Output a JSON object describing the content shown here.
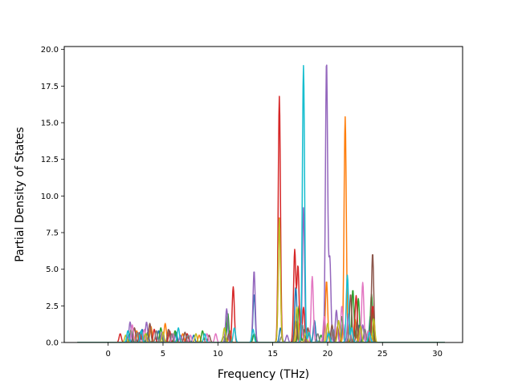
{
  "chart_data": {
    "type": "line",
    "title": "",
    "xlabel": "Frequency (THz)",
    "ylabel": "Partial Density of States",
    "xlim": [
      -4.0,
      32.3
    ],
    "ylim": [
      0.0,
      20.2
    ],
    "xticks": [
      0,
      5,
      10,
      15,
      20,
      25,
      30
    ],
    "yticks": [
      0.0,
      2.5,
      5.0,
      7.5,
      10.0,
      12.5,
      15.0,
      17.5,
      20.0
    ],
    "ytick_labels": [
      "0.0",
      "2.5",
      "5.0",
      "7.5",
      "10.0",
      "12.5",
      "15.0",
      "17.5",
      "20.0"
    ],
    "grid": false,
    "legend": "none",
    "x_range": [
      -2.8,
      30.7
    ],
    "series": [
      {
        "color": "#1f77b4",
        "peaks": [
          [
            1.9,
            0.6
          ],
          [
            3.1,
            0.9
          ],
          [
            4.6,
            0.8
          ],
          [
            6.2,
            0.7
          ],
          [
            7.8,
            0.5
          ],
          [
            10.9,
            1.4
          ],
          [
            13.3,
            3.3
          ],
          [
            15.7,
            1.0
          ],
          [
            17.1,
            3.8
          ],
          [
            18.8,
            1.5
          ],
          [
            20.1,
            0.8
          ],
          [
            21.4,
            1.3
          ],
          [
            22.9,
            1.2
          ],
          [
            23.9,
            1.8
          ]
        ]
      },
      {
        "color": "#ff7f0e",
        "peaks": [
          [
            2.6,
            0.8
          ],
          [
            3.9,
            1.1
          ],
          [
            5.2,
            1.3
          ],
          [
            6.8,
            0.6
          ],
          [
            8.3,
            0.5
          ],
          [
            11.1,
            0.8
          ],
          [
            15.6,
            8.5
          ],
          [
            17.3,
            1.4
          ],
          [
            18.3,
            0.8
          ],
          [
            19.9,
            4.2
          ],
          [
            21.6,
            15.4
          ],
          [
            22.5,
            1.6
          ],
          [
            24.0,
            0.6
          ]
        ]
      },
      {
        "color": "#2ca02c",
        "peaks": [
          [
            2.1,
            0.9
          ],
          [
            3.6,
            0.7
          ],
          [
            4.8,
            1.0
          ],
          [
            6.1,
            0.8
          ],
          [
            8.6,
            0.8
          ],
          [
            10.9,
            2.0
          ],
          [
            13.3,
            0.6
          ],
          [
            17.4,
            2.5
          ],
          [
            17.9,
            0.9
          ],
          [
            19.4,
            0.5
          ],
          [
            21.3,
            1.8
          ],
          [
            22.3,
            3.6
          ],
          [
            22.8,
            3.0
          ],
          [
            24.0,
            3.3
          ]
        ]
      },
      {
        "color": "#d62728",
        "peaks": [
          [
            1.1,
            0.6
          ],
          [
            2.9,
            0.7
          ],
          [
            4.2,
            0.9
          ],
          [
            5.6,
            0.8
          ],
          [
            7.2,
            0.6
          ],
          [
            11.4,
            3.8
          ],
          [
            15.6,
            16.8
          ],
          [
            17.0,
            6.3
          ],
          [
            17.3,
            5.2
          ],
          [
            17.8,
            2.4
          ],
          [
            20.9,
            1.1
          ],
          [
            22.6,
            3.2
          ],
          [
            24.1,
            2.5
          ]
        ]
      },
      {
        "color": "#9467bd",
        "peaks": [
          [
            2.0,
            1.4
          ],
          [
            3.5,
            1.4
          ],
          [
            4.9,
            0.7
          ],
          [
            6.6,
            0.5
          ],
          [
            10.8,
            2.3
          ],
          [
            13.3,
            4.9
          ],
          [
            16.3,
            0.5
          ],
          [
            17.8,
            9.2
          ],
          [
            19.9,
            19.2
          ],
          [
            20.2,
            5.7
          ],
          [
            20.8,
            2.2
          ],
          [
            21.9,
            2.0
          ],
          [
            23.2,
            1.2
          ]
        ]
      },
      {
        "color": "#8c564b",
        "peaks": [
          [
            2.4,
            1.0
          ],
          [
            3.8,
            1.3
          ],
          [
            5.5,
            0.9
          ],
          [
            7.0,
            0.7
          ],
          [
            9.2,
            0.5
          ],
          [
            11.0,
            0.6
          ],
          [
            17.1,
            1.5
          ],
          [
            18.2,
            1.0
          ],
          [
            20.4,
            1.2
          ],
          [
            22.1,
            3.3
          ],
          [
            22.7,
            1.4
          ],
          [
            24.1,
            6.1
          ]
        ]
      },
      {
        "color": "#e377c2",
        "peaks": [
          [
            2.2,
            1.2
          ],
          [
            3.3,
            0.9
          ],
          [
            5.9,
            0.6
          ],
          [
            7.5,
            0.5
          ],
          [
            9.0,
            0.6
          ],
          [
            9.8,
            0.6
          ],
          [
            17.6,
            1.3
          ],
          [
            18.6,
            4.5
          ],
          [
            19.7,
            1.8
          ],
          [
            21.3,
            2.5
          ],
          [
            23.2,
            4.1
          ],
          [
            23.7,
            0.8
          ]
        ]
      },
      {
        "color": "#7f7f7f",
        "peaks": [
          [
            2.7,
            0.7
          ],
          [
            4.4,
            0.8
          ],
          [
            5.8,
            0.6
          ],
          [
            7.3,
            0.5
          ],
          [
            10.5,
            0.4
          ],
          [
            15.8,
            0.4
          ],
          [
            17.7,
            1.2
          ],
          [
            19.1,
            0.6
          ],
          [
            20.5,
            0.9
          ],
          [
            22.0,
            1.0
          ],
          [
            23.4,
            0.9
          ]
        ]
      },
      {
        "color": "#bcbd22",
        "peaks": [
          [
            1.6,
            0.5
          ],
          [
            3.4,
            0.6
          ],
          [
            5.0,
            0.7
          ],
          [
            8.0,
            0.6
          ],
          [
            10.6,
            1.0
          ],
          [
            15.6,
            8.4
          ],
          [
            17.2,
            2.4
          ],
          [
            18.0,
            0.6
          ],
          [
            20.0,
            1.3
          ],
          [
            21.0,
            1.5
          ],
          [
            23.0,
            1.1
          ],
          [
            24.2,
            1.6
          ]
        ]
      },
      {
        "color": "#17becf",
        "peaks": [
          [
            1.8,
            0.8
          ],
          [
            3.0,
            0.8
          ],
          [
            6.4,
            1.0
          ],
          [
            8.8,
            0.6
          ],
          [
            11.5,
            1.0
          ],
          [
            13.2,
            0.9
          ],
          [
            17.8,
            18.9
          ],
          [
            18.3,
            0.7
          ],
          [
            20.1,
            0.6
          ],
          [
            21.8,
            4.6
          ],
          [
            22.2,
            1.0
          ],
          [
            23.8,
            0.7
          ]
        ]
      }
    ]
  }
}
